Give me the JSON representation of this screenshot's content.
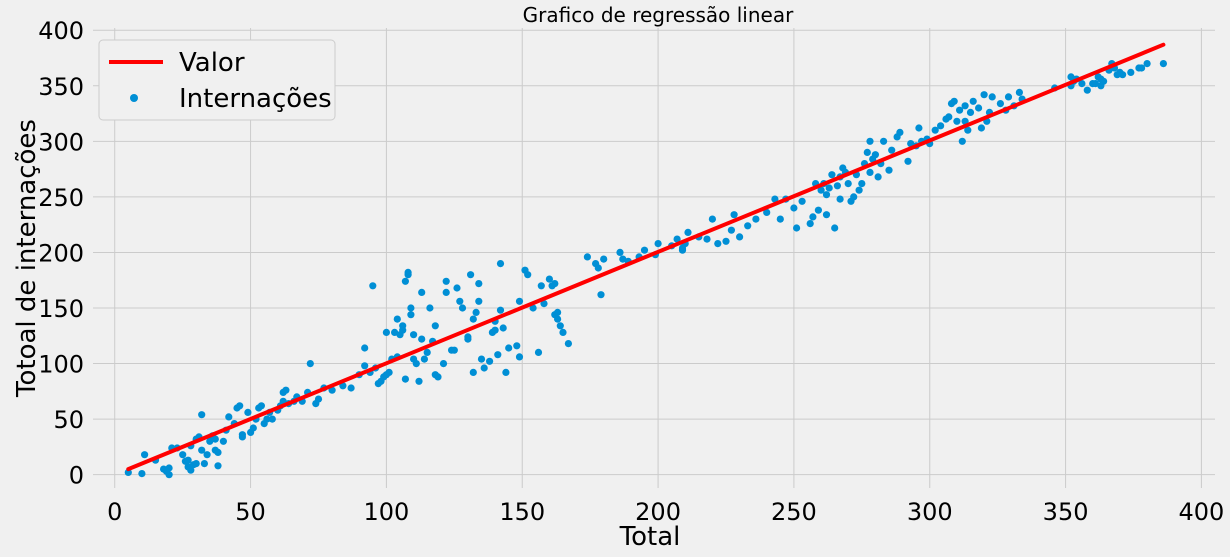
{
  "chart_data": {
    "type": "scatter",
    "title": "Grafico de regressão linear",
    "xlabel": "Total",
    "ylabel": "Totoal de internações",
    "xlim": [
      -8,
      405
    ],
    "ylim": [
      -12,
      402
    ],
    "xticks": [
      0,
      50,
      100,
      150,
      200,
      250,
      300,
      350,
      400
    ],
    "yticks": [
      0,
      50,
      100,
      150,
      200,
      250,
      300,
      350,
      400
    ],
    "grid": true,
    "legend_position": "top-left",
    "series": [
      {
        "name": "Valor",
        "kind": "line",
        "color": "#ff0000",
        "x": [
          5,
          386
        ],
        "y": [
          5,
          387
        ]
      },
      {
        "name": "Internações",
        "kind": "scatter",
        "color": "#008fd5",
        "points": [
          [
            5,
            2
          ],
          [
            10,
            1
          ],
          [
            11,
            18
          ],
          [
            15,
            13
          ],
          [
            18,
            5
          ],
          [
            19,
            3
          ],
          [
            20,
            6
          ],
          [
            20,
            0
          ],
          [
            21,
            24
          ],
          [
            23,
            24
          ],
          [
            25,
            18
          ],
          [
            26,
            12
          ],
          [
            27,
            13
          ],
          [
            27,
            7
          ],
          [
            28,
            4
          ],
          [
            28,
            26
          ],
          [
            29,
            9
          ],
          [
            30,
            32
          ],
          [
            30,
            10
          ],
          [
            31,
            34
          ],
          [
            32,
            22
          ],
          [
            32,
            54
          ],
          [
            33,
            10
          ],
          [
            34,
            18
          ],
          [
            35,
            30
          ],
          [
            36,
            35
          ],
          [
            37,
            22
          ],
          [
            37,
            32
          ],
          [
            38,
            8
          ],
          [
            38,
            20
          ],
          [
            40,
            30
          ],
          [
            41,
            40
          ],
          [
            42,
            52
          ],
          [
            44,
            46
          ],
          [
            45,
            60
          ],
          [
            46,
            62
          ],
          [
            47,
            36
          ],
          [
            47,
            34
          ],
          [
            49,
            56
          ],
          [
            50,
            38
          ],
          [
            51,
            42
          ],
          [
            52,
            50
          ],
          [
            53,
            60
          ],
          [
            54,
            62
          ],
          [
            55,
            46
          ],
          [
            56,
            50
          ],
          [
            57,
            56
          ],
          [
            58,
            50
          ],
          [
            60,
            58
          ],
          [
            61,
            62
          ],
          [
            62,
            66
          ],
          [
            62,
            74
          ],
          [
            63,
            76
          ],
          [
            64,
            64
          ],
          [
            66,
            66
          ],
          [
            67,
            70
          ],
          [
            69,
            66
          ],
          [
            71,
            74
          ],
          [
            72,
            100
          ],
          [
            74,
            64
          ],
          [
            75,
            68
          ],
          [
            77,
            78
          ],
          [
            80,
            76
          ],
          [
            84,
            80
          ],
          [
            87,
            78
          ],
          [
            90,
            90
          ],
          [
            92,
            114
          ],
          [
            92,
            98
          ],
          [
            94,
            92
          ],
          [
            95,
            170
          ],
          [
            96,
            96
          ],
          [
            97,
            82
          ],
          [
            98,
            84
          ],
          [
            99,
            88
          ],
          [
            100,
            90
          ],
          [
            100,
            128
          ],
          [
            101,
            92
          ],
          [
            102,
            104
          ],
          [
            103,
            128
          ],
          [
            104,
            140
          ],
          [
            104,
            106
          ],
          [
            105,
            126
          ],
          [
            106,
            134
          ],
          [
            106,
            130
          ],
          [
            107,
            86
          ],
          [
            107,
            174
          ],
          [
            108,
            180
          ],
          [
            108,
            182
          ],
          [
            109,
            144
          ],
          [
            109,
            150
          ],
          [
            110,
            104
          ],
          [
            110,
            126
          ],
          [
            111,
            100
          ],
          [
            112,
            84
          ],
          [
            113,
            164
          ],
          [
            113,
            122
          ],
          [
            114,
            104
          ],
          [
            115,
            110
          ],
          [
            116,
            150
          ],
          [
            117,
            120
          ],
          [
            118,
            134
          ],
          [
            118,
            90
          ],
          [
            119,
            88
          ],
          [
            121,
            100
          ],
          [
            122,
            174
          ],
          [
            122,
            164
          ],
          [
            124,
            112
          ],
          [
            125,
            112
          ],
          [
            126,
            168
          ],
          [
            127,
            156
          ],
          [
            128,
            150
          ],
          [
            130,
            122
          ],
          [
            130,
            124
          ],
          [
            131,
            180
          ],
          [
            132,
            140
          ],
          [
            132,
            92
          ],
          [
            133,
            146
          ],
          [
            134,
            156
          ],
          [
            134,
            172
          ],
          [
            135,
            104
          ],
          [
            136,
            96
          ],
          [
            138,
            102
          ],
          [
            139,
            128
          ],
          [
            140,
            138
          ],
          [
            140,
            130
          ],
          [
            141,
            108
          ],
          [
            142,
            148
          ],
          [
            142,
            190
          ],
          [
            143,
            132
          ],
          [
            144,
            92
          ],
          [
            145,
            114
          ],
          [
            148,
            116
          ],
          [
            149,
            106
          ],
          [
            149,
            156
          ],
          [
            151,
            184
          ],
          [
            152,
            180
          ],
          [
            154,
            150
          ],
          [
            156,
            110
          ],
          [
            157,
            170
          ],
          [
            158,
            154
          ],
          [
            160,
            176
          ],
          [
            161,
            170
          ],
          [
            162,
            172
          ],
          [
            162,
            144
          ],
          [
            163,
            140
          ],
          [
            163,
            146
          ],
          [
            164,
            134
          ],
          [
            165,
            128
          ],
          [
            167,
            118
          ],
          [
            174,
            196
          ],
          [
            177,
            190
          ],
          [
            178,
            186
          ],
          [
            179,
            162
          ],
          [
            180,
            194
          ],
          [
            186,
            200
          ],
          [
            187,
            194
          ],
          [
            189,
            192
          ],
          [
            193,
            196
          ],
          [
            195,
            202
          ],
          [
            199,
            198
          ],
          [
            200,
            208
          ],
          [
            205,
            206
          ],
          [
            207,
            212
          ],
          [
            209,
            202
          ],
          [
            209,
            204
          ],
          [
            210,
            208
          ],
          [
            211,
            218
          ],
          [
            215,
            214
          ],
          [
            218,
            212
          ],
          [
            220,
            230
          ],
          [
            222,
            208
          ],
          [
            225,
            210
          ],
          [
            227,
            220
          ],
          [
            228,
            234
          ],
          [
            230,
            214
          ],
          [
            233,
            224
          ],
          [
            236,
            230
          ],
          [
            240,
            236
          ],
          [
            243,
            248
          ],
          [
            245,
            230
          ],
          [
            247,
            248
          ],
          [
            250,
            240
          ],
          [
            251,
            222
          ],
          [
            253,
            246
          ],
          [
            256,
            226
          ],
          [
            257,
            232
          ],
          [
            258,
            262
          ],
          [
            259,
            238
          ],
          [
            260,
            256
          ],
          [
            261,
            262
          ],
          [
            262,
            234
          ],
          [
            262,
            252
          ],
          [
            263,
            258
          ],
          [
            264,
            270
          ],
          [
            265,
            222
          ],
          [
            266,
            260
          ],
          [
            267,
            268
          ],
          [
            267,
            248
          ],
          [
            268,
            276
          ],
          [
            269,
            272
          ],
          [
            270,
            262
          ],
          [
            271,
            246
          ],
          [
            272,
            250
          ],
          [
            273,
            270
          ],
          [
            274,
            256
          ],
          [
            275,
            262
          ],
          [
            276,
            280
          ],
          [
            277,
            290
          ],
          [
            278,
            300
          ],
          [
            278,
            272
          ],
          [
            279,
            284
          ],
          [
            280,
            288
          ],
          [
            281,
            268
          ],
          [
            282,
            280
          ],
          [
            283,
            300
          ],
          [
            285,
            274
          ],
          [
            286,
            292
          ],
          [
            288,
            304
          ],
          [
            289,
            308
          ],
          [
            292,
            282
          ],
          [
            293,
            298
          ],
          [
            295,
            296
          ],
          [
            296,
            312
          ],
          [
            297,
            300
          ],
          [
            299,
            302
          ],
          [
            300,
            298
          ],
          [
            302,
            310
          ],
          [
            304,
            314
          ],
          [
            306,
            320
          ],
          [
            307,
            322
          ],
          [
            308,
            334
          ],
          [
            309,
            336
          ],
          [
            310,
            318
          ],
          [
            311,
            328
          ],
          [
            312,
            300
          ],
          [
            313,
            318
          ],
          [
            313,
            332
          ],
          [
            314,
            310
          ],
          [
            315,
            326
          ],
          [
            316,
            336
          ],
          [
            318,
            330
          ],
          [
            319,
            312
          ],
          [
            320,
            342
          ],
          [
            321,
            318
          ],
          [
            322,
            326
          ],
          [
            323,
            340
          ],
          [
            326,
            334
          ],
          [
            328,
            328
          ],
          [
            329,
            340
          ],
          [
            331,
            332
          ],
          [
            333,
            344
          ],
          [
            334,
            338
          ],
          [
            346,
            348
          ],
          [
            352,
            350
          ],
          [
            352,
            358
          ],
          [
            353,
            354
          ],
          [
            354,
            356
          ],
          [
            356,
            352
          ],
          [
            358,
            346
          ],
          [
            360,
            352
          ],
          [
            361,
            352
          ],
          [
            362,
            358
          ],
          [
            363,
            356
          ],
          [
            363,
            350
          ],
          [
            364,
            354
          ],
          [
            366,
            364
          ],
          [
            367,
            370
          ],
          [
            368,
            366
          ],
          [
            369,
            360
          ],
          [
            370,
            362
          ],
          [
            371,
            360
          ],
          [
            374,
            362
          ],
          [
            377,
            366
          ],
          [
            378,
            366
          ],
          [
            380,
            370
          ],
          [
            386,
            370
          ]
        ]
      }
    ]
  }
}
